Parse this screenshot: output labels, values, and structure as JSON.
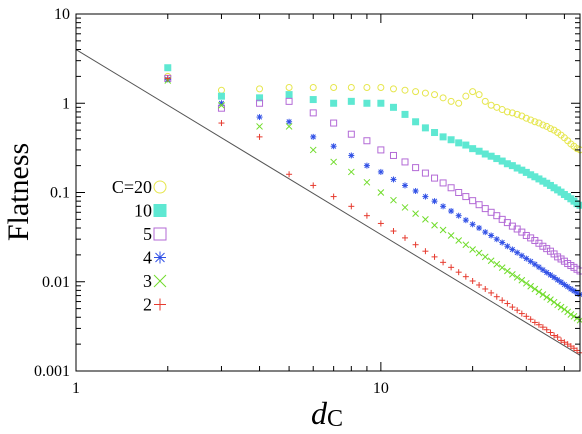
{
  "chart_data": {
    "type": "scatter",
    "title": "",
    "xlabel": "d",
    "xlabel_sub": "C",
    "ylabel": "Flatness",
    "xscale": "log",
    "yscale": "log",
    "xlim": [
      1,
      45
    ],
    "ylim": [
      0.001,
      10
    ],
    "x_ticks": [
      {
        "value": 1,
        "label": "1"
      },
      {
        "value": 10,
        "label": "10"
      }
    ],
    "y_ticks": [
      {
        "value": 0.001,
        "label": "0.001"
      },
      {
        "value": 0.01,
        "label": "0.01"
      },
      {
        "value": 0.1,
        "label": "0.1"
      },
      {
        "value": 1,
        "label": "1"
      },
      {
        "value": 10,
        "label": "10"
      }
    ],
    "grid": false,
    "legend_position": "left",
    "reference_line": {
      "points": [
        [
          1,
          4.0
        ],
        [
          45,
          0.0015
        ]
      ],
      "color": "#555555"
    },
    "series": [
      {
        "name": "C=20",
        "label": "C=20",
        "marker": "circle",
        "color": "#e6e64d",
        "points": [
          [
            2,
            2.0
          ],
          [
            3,
            1.4
          ],
          [
            4,
            1.45
          ],
          [
            5,
            1.5
          ],
          [
            6,
            1.5
          ],
          [
            7,
            1.5
          ],
          [
            8,
            1.5
          ],
          [
            9,
            1.5
          ],
          [
            10,
            1.5
          ],
          [
            11,
            1.45
          ],
          [
            12,
            1.4
          ],
          [
            13,
            1.35
          ],
          [
            14,
            1.3
          ],
          [
            15,
            1.25
          ],
          [
            16,
            1.15
          ],
          [
            17,
            1.05
          ],
          [
            18,
            1.0
          ],
          [
            19,
            1.2
          ],
          [
            20,
            1.35
          ],
          [
            21,
            1.25
          ],
          [
            22,
            1.05
          ],
          [
            23,
            0.95
          ],
          [
            24,
            0.9
          ],
          [
            25,
            0.85
          ],
          [
            26,
            0.8
          ],
          [
            27,
            0.78
          ],
          [
            28,
            0.75
          ],
          [
            29,
            0.72
          ],
          [
            30,
            0.68
          ],
          [
            31,
            0.65
          ],
          [
            32,
            0.62
          ],
          [
            33,
            0.6
          ],
          [
            34,
            0.57
          ],
          [
            35,
            0.55
          ],
          [
            36,
            0.52
          ],
          [
            37,
            0.5
          ],
          [
            38,
            0.47
          ],
          [
            39,
            0.44
          ],
          [
            40,
            0.41
          ],
          [
            41,
            0.38
          ],
          [
            42,
            0.35
          ],
          [
            43,
            0.33
          ],
          [
            44,
            0.31
          ],
          [
            45,
            0.3
          ]
        ]
      },
      {
        "name": "10",
        "label": "10",
        "marker": "square-filled",
        "color": "#5ee8d2",
        "points": [
          [
            2,
            2.5
          ],
          [
            3,
            1.2
          ],
          [
            4,
            1.15
          ],
          [
            5,
            1.25
          ],
          [
            6,
            1.1
          ],
          [
            7,
            1.0
          ],
          [
            8,
            1.05
          ],
          [
            9,
            1.0
          ],
          [
            10,
            1.0
          ],
          [
            11,
            0.9
          ],
          [
            12,
            0.75
          ],
          [
            13,
            0.62
          ],
          [
            14,
            0.53
          ],
          [
            15,
            0.47
          ],
          [
            16,
            0.42
          ],
          [
            17,
            0.39
          ],
          [
            18,
            0.36
          ],
          [
            19,
            0.34
          ],
          [
            20,
            0.31
          ],
          [
            21,
            0.29
          ],
          [
            22,
            0.27
          ],
          [
            23,
            0.255
          ],
          [
            24,
            0.24
          ],
          [
            25,
            0.225
          ],
          [
            26,
            0.21
          ],
          [
            27,
            0.2
          ],
          [
            28,
            0.188
          ],
          [
            29,
            0.178
          ],
          [
            30,
            0.168
          ],
          [
            31,
            0.158
          ],
          [
            32,
            0.15
          ],
          [
            33,
            0.142
          ],
          [
            34,
            0.134
          ],
          [
            35,
            0.127
          ],
          [
            36,
            0.12
          ],
          [
            37,
            0.113
          ],
          [
            38,
            0.107
          ],
          [
            39,
            0.101
          ],
          [
            40,
            0.095
          ],
          [
            41,
            0.09
          ],
          [
            42,
            0.085
          ],
          [
            43,
            0.08
          ],
          [
            44,
            0.075
          ],
          [
            45,
            0.072
          ]
        ]
      },
      {
        "name": "5",
        "label": "5",
        "marker": "square-open",
        "color": "#b36ad6",
        "points": [
          [
            2,
            1.9
          ],
          [
            3,
            0.88
          ],
          [
            4,
            1.0
          ],
          [
            5,
            1.05
          ],
          [
            6,
            0.78
          ],
          [
            7,
            0.6
          ],
          [
            8,
            0.45
          ],
          [
            9,
            0.38
          ],
          [
            10,
            0.3
          ],
          [
            11,
            0.26
          ],
          [
            12,
            0.22
          ],
          [
            13,
            0.19
          ],
          [
            14,
            0.165
          ],
          [
            15,
            0.145
          ],
          [
            16,
            0.128
          ],
          [
            17,
            0.113
          ],
          [
            18,
            0.1
          ],
          [
            19,
            0.09
          ],
          [
            20,
            0.081
          ],
          [
            21,
            0.073
          ],
          [
            22,
            0.066
          ],
          [
            23,
            0.06
          ],
          [
            24,
            0.055
          ],
          [
            25,
            0.05
          ],
          [
            26,
            0.046
          ],
          [
            27,
            0.042
          ],
          [
            28,
            0.039
          ],
          [
            29,
            0.036
          ],
          [
            30,
            0.033
          ],
          [
            31,
            0.031
          ],
          [
            32,
            0.029
          ],
          [
            33,
            0.027
          ],
          [
            34,
            0.025
          ],
          [
            35,
            0.0235
          ],
          [
            36,
            0.022
          ],
          [
            37,
            0.0205
          ],
          [
            38,
            0.019
          ],
          [
            39,
            0.018
          ],
          [
            40,
            0.017
          ],
          [
            41,
            0.016
          ],
          [
            42,
            0.0152
          ],
          [
            43,
            0.0145
          ],
          [
            44,
            0.0138
          ],
          [
            45,
            0.0132
          ]
        ]
      },
      {
        "name": "4",
        "label": "4",
        "marker": "star",
        "color": "#3050e6",
        "points": [
          [
            2,
            1.85
          ],
          [
            3,
            1.0
          ],
          [
            4,
            0.7
          ],
          [
            5,
            0.62
          ],
          [
            6,
            0.42
          ],
          [
            7,
            0.33
          ],
          [
            8,
            0.26
          ],
          [
            9,
            0.2
          ],
          [
            10,
            0.17
          ],
          [
            11,
            0.14
          ],
          [
            12,
            0.12
          ],
          [
            13,
            0.104
          ],
          [
            14,
            0.09
          ],
          [
            15,
            0.08
          ],
          [
            16,
            0.07
          ],
          [
            17,
            0.062
          ],
          [
            18,
            0.055
          ],
          [
            19,
            0.049
          ],
          [
            20,
            0.044
          ],
          [
            21,
            0.04
          ],
          [
            22,
            0.036
          ],
          [
            23,
            0.033
          ],
          [
            24,
            0.03
          ],
          [
            25,
            0.0275
          ],
          [
            26,
            0.025
          ],
          [
            27,
            0.023
          ],
          [
            28,
            0.0212
          ],
          [
            29,
            0.0196
          ],
          [
            30,
            0.0182
          ],
          [
            31,
            0.0169
          ],
          [
            32,
            0.0157
          ],
          [
            33,
            0.0146
          ],
          [
            34,
            0.0136
          ],
          [
            35,
            0.0127
          ],
          [
            36,
            0.0119
          ],
          [
            37,
            0.0112
          ],
          [
            38,
            0.0105
          ],
          [
            39,
            0.0099
          ],
          [
            40,
            0.0093
          ],
          [
            41,
            0.0088
          ],
          [
            42,
            0.0083
          ],
          [
            43,
            0.0079
          ],
          [
            44,
            0.0075
          ],
          [
            45,
            0.0072
          ]
        ]
      },
      {
        "name": "3",
        "label": "3",
        "marker": "cross",
        "color": "#70dc2a",
        "points": [
          [
            2,
            1.8
          ],
          [
            3,
            0.95
          ],
          [
            4,
            0.55
          ],
          [
            5,
            0.55
          ],
          [
            6,
            0.3
          ],
          [
            7,
            0.22
          ],
          [
            8,
            0.17
          ],
          [
            9,
            0.13
          ],
          [
            10,
            0.1
          ],
          [
            11,
            0.082
          ],
          [
            12,
            0.068
          ],
          [
            13,
            0.058
          ],
          [
            14,
            0.05
          ],
          [
            15,
            0.043
          ],
          [
            16,
            0.038
          ],
          [
            17,
            0.033
          ],
          [
            18,
            0.029
          ],
          [
            19,
            0.026
          ],
          [
            20,
            0.023
          ],
          [
            21,
            0.021
          ],
          [
            22,
            0.019
          ],
          [
            23,
            0.0172
          ],
          [
            24,
            0.0157
          ],
          [
            25,
            0.0144
          ],
          [
            26,
            0.0132
          ],
          [
            27,
            0.0121
          ],
          [
            28,
            0.0112
          ],
          [
            29,
            0.0104
          ],
          [
            30,
            0.0096
          ],
          [
            31,
            0.0089
          ],
          [
            32,
            0.0083
          ],
          [
            33,
            0.0077
          ],
          [
            34,
            0.0072
          ],
          [
            35,
            0.0067
          ],
          [
            36,
            0.0063
          ],
          [
            37,
            0.0059
          ],
          [
            38,
            0.0055
          ],
          [
            39,
            0.0052
          ],
          [
            40,
            0.0049
          ],
          [
            41,
            0.0046
          ],
          [
            42,
            0.0043
          ],
          [
            43,
            0.0041
          ],
          [
            44,
            0.0039
          ],
          [
            45,
            0.0037
          ]
        ]
      },
      {
        "name": "2",
        "label": "2",
        "marker": "plus",
        "color": "#e63a2e",
        "points": [
          [
            2,
            1.9
          ],
          [
            3,
            0.6
          ],
          [
            4,
            0.42
          ],
          [
            5,
            0.16
          ],
          [
            6,
            0.12
          ],
          [
            7,
            0.09
          ],
          [
            8,
            0.07
          ],
          [
            9,
            0.055
          ],
          [
            10,
            0.045
          ],
          [
            11,
            0.037
          ],
          [
            12,
            0.031
          ],
          [
            13,
            0.026
          ],
          [
            14,
            0.022
          ],
          [
            15,
            0.019
          ],
          [
            16,
            0.0165
          ],
          [
            17,
            0.0145
          ],
          [
            18,
            0.0128
          ],
          [
            19,
            0.0114
          ],
          [
            20,
            0.0102
          ],
          [
            21,
            0.0092
          ],
          [
            22,
            0.0083
          ],
          [
            23,
            0.0075
          ],
          [
            24,
            0.0068
          ],
          [
            25,
            0.0062
          ],
          [
            26,
            0.0057
          ],
          [
            27,
            0.0052
          ],
          [
            28,
            0.0048
          ],
          [
            29,
            0.0044
          ],
          [
            30,
            0.0041
          ],
          [
            31,
            0.0038
          ],
          [
            32,
            0.0035
          ],
          [
            33,
            0.0033
          ],
          [
            34,
            0.0031
          ],
          [
            35,
            0.0029
          ],
          [
            36,
            0.0027
          ],
          [
            37,
            0.0025
          ],
          [
            38,
            0.0024
          ],
          [
            39,
            0.0022
          ],
          [
            40,
            0.0021
          ],
          [
            41,
            0.002
          ],
          [
            42,
            0.0019
          ],
          [
            43,
            0.0018
          ],
          [
            44,
            0.0017
          ],
          [
            45,
            0.0016
          ]
        ]
      }
    ]
  }
}
